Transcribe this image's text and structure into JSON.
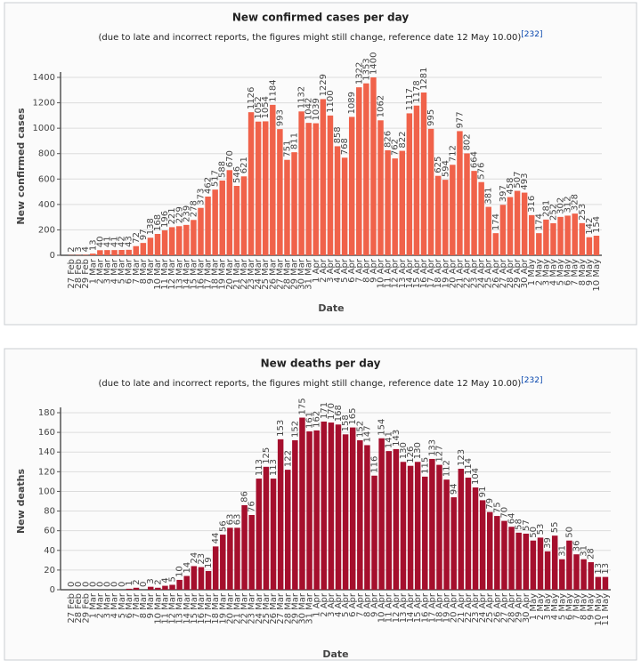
{
  "chart_data": [
    {
      "type": "bar",
      "title": "New confirmed cases per day",
      "subtitle": "(due to late and incorrect reports, the figures might still change, reference date 12 May 10.00)",
      "reference": "[232]",
      "x_label": "Date",
      "y_label": "New confirmed cases",
      "categories": [
        "27 Feb",
        "28 Feb",
        "29 Feb",
        "1 Mar",
        "2 Mar",
        "3 Mar",
        "4 Mar",
        "5 Mar",
        "6 Mar",
        "7 Mar",
        "8 Mar",
        "9 Mar",
        "10 Mar",
        "11 Mar",
        "12 Mar",
        "13 Mar",
        "14 Mar",
        "15 Mar",
        "16 Mar",
        "17 Mar",
        "18 Mar",
        "19 Mar",
        "20 Mar",
        "21 Mar",
        "22 Mar",
        "23 Mar",
        "24 Mar",
        "25 Mar",
        "26 Mar",
        "27 Mar",
        "28 Mar",
        "29 Mar",
        "30 Mar",
        "31 Mar",
        "1 Apr",
        "2 Apr",
        "3 Apr",
        "4 Apr",
        "5 Apr",
        "6 Apr",
        "7 Apr",
        "8 Apr",
        "9 Apr",
        "10 Apr",
        "11 Apr",
        "12 Apr",
        "13 Apr",
        "14 Apr",
        "15 Apr",
        "16 Apr",
        "17 Apr",
        "18 Apr",
        "19 Apr",
        "20 Apr",
        "21 Apr",
        "22 Apr",
        "23 Apr",
        "24 Apr",
        "25 Apr",
        "26 Apr",
        "27 Apr",
        "28 Apr",
        "29 Apr",
        "30 Apr",
        "1 May",
        "2 May",
        "3 May",
        "4 May",
        "5 May",
        "6 May",
        "7 May",
        "8 May",
        "9 May",
        "10 May"
      ],
      "values": [
        2,
        3,
        4,
        13,
        40,
        41,
        41,
        42,
        43,
        72,
        97,
        138,
        168,
        196,
        221,
        229,
        239,
        278,
        373,
        462,
        517,
        588,
        670,
        546,
        621,
        1126,
        1052,
        1054,
        1184,
        993,
        751,
        811,
        1132,
        1042,
        1039,
        1229,
        1100,
        858,
        768,
        1089,
        1322,
        1353,
        1400,
        1062,
        826,
        762,
        822,
        1117,
        1178,
        1281,
        995,
        625,
        594,
        712,
        977,
        802,
        664,
        576,
        381,
        174,
        397,
        458,
        507,
        493,
        316,
        174,
        281,
        252,
        302,
        312,
        328,
        253,
        142,
        154
      ],
      "color": "#f0624a",
      "ylim": [
        0,
        1400
      ],
      "yticks": [
        0,
        200,
        400,
        600,
        800,
        1000,
        1200,
        1400
      ],
      "grid": true
    },
    {
      "type": "bar",
      "title": "New deaths per day",
      "subtitle": "(due to late and incorrect reports, the figures might still change, reference date 12 May 10.00)",
      "reference": "[232]",
      "x_label": "Date",
      "y_label": "New deaths",
      "categories": [
        "27 Feb",
        "28 Feb",
        "29 Feb",
        "1 Mar",
        "2 Mar",
        "3 Mar",
        "4 Mar",
        "5 Mar",
        "6 Mar",
        "7 Mar",
        "8 Mar",
        "9 Mar",
        "10 Mar",
        "11 Mar",
        "12 Mar",
        "13 Mar",
        "14 Mar",
        "15 Mar",
        "16 Mar",
        "17 Mar",
        "18 Mar",
        "19 Mar",
        "20 Mar",
        "21 Mar",
        "22 Mar",
        "23 Mar",
        "24 Mar",
        "25 Mar",
        "26 Mar",
        "27 Mar",
        "28 Mar",
        "29 Mar",
        "30 Mar",
        "31 Mar",
        "1 Apr",
        "2 Apr",
        "3 Apr",
        "4 Apr",
        "5 Apr",
        "6 Apr",
        "7 Apr",
        "8 Apr",
        "9 Apr",
        "10 Apr",
        "11 Apr",
        "12 Apr",
        "13 Apr",
        "14 Apr",
        "15 Apr",
        "16 Apr",
        "17 Apr",
        "18 Apr",
        "19 Apr",
        "20 Apr",
        "21 Apr",
        "22 Apr",
        "23 Apr",
        "24 Apr",
        "25 Apr",
        "26 Apr",
        "27 Apr",
        "28 Apr",
        "29 Apr",
        "30 Apr",
        "1 May",
        "2 May",
        "3 May",
        "4 May",
        "5 May",
        "6 May",
        "7 May",
        "8 May",
        "9 May",
        "10 May",
        "11 May"
      ],
      "values": [
        0,
        0,
        0,
        0,
        0,
        0,
        0,
        0,
        1,
        2,
        0,
        3,
        2,
        4,
        5,
        10,
        14,
        24,
        23,
        19,
        44,
        56,
        63,
        63,
        86,
        76,
        113,
        125,
        113,
        153,
        122,
        152,
        175,
        161,
        162,
        171,
        170,
        168,
        158,
        165,
        152,
        147,
        116,
        154,
        141,
        143,
        130,
        126,
        130,
        115,
        133,
        127,
        112,
        94,
        123,
        114,
        104,
        91,
        79,
        75,
        70,
        64,
        58,
        57,
        50,
        53,
        39,
        55,
        31,
        50,
        36,
        31,
        28,
        13,
        13
      ],
      "color": "#a50f2d",
      "ylim": [
        0,
        180
      ],
      "yticks": [
        0,
        20,
        40,
        60,
        80,
        100,
        120,
        140,
        160,
        180
      ],
      "grid": true
    }
  ]
}
